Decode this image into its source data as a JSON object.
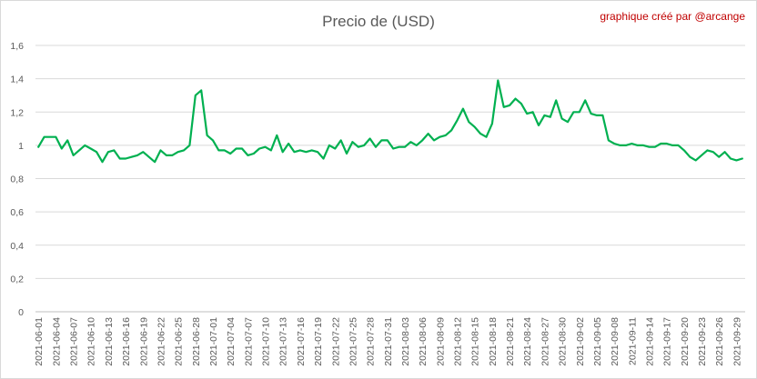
{
  "credit": "graphique créé par @arcange",
  "chart_data": {
    "type": "line",
    "title": "Precio de (USD)",
    "xlabel": "",
    "ylabel": "",
    "ylim": [
      0,
      1.6
    ],
    "yticks": [
      "0",
      "0,2",
      "0,4",
      "0,6",
      "0,8",
      "1",
      "1,2",
      "1,4",
      "1,6"
    ],
    "grid": true,
    "legend": "none",
    "line_color": "#00b050",
    "x": [
      "2021-06-01",
      "2021-06-02",
      "2021-06-03",
      "2021-06-04",
      "2021-06-05",
      "2021-06-06",
      "2021-06-07",
      "2021-06-08",
      "2021-06-09",
      "2021-06-10",
      "2021-06-11",
      "2021-06-12",
      "2021-06-13",
      "2021-06-14",
      "2021-06-15",
      "2021-06-16",
      "2021-06-17",
      "2021-06-18",
      "2021-06-19",
      "2021-06-20",
      "2021-06-21",
      "2021-06-22",
      "2021-06-23",
      "2021-06-24",
      "2021-06-25",
      "2021-06-26",
      "2021-06-27",
      "2021-06-28",
      "2021-06-29",
      "2021-06-30",
      "2021-07-01",
      "2021-07-02",
      "2021-07-03",
      "2021-07-04",
      "2021-07-05",
      "2021-07-06",
      "2021-07-07",
      "2021-07-08",
      "2021-07-09",
      "2021-07-10",
      "2021-07-11",
      "2021-07-12",
      "2021-07-13",
      "2021-07-14",
      "2021-07-15",
      "2021-07-16",
      "2021-07-17",
      "2021-07-18",
      "2021-07-19",
      "2021-07-20",
      "2021-07-21",
      "2021-07-22",
      "2021-07-23",
      "2021-07-24",
      "2021-07-25",
      "2021-07-26",
      "2021-07-27",
      "2021-07-28",
      "2021-07-29",
      "2021-07-30",
      "2021-07-31",
      "2021-08-01",
      "2021-08-02",
      "2021-08-03",
      "2021-08-04",
      "2021-08-05",
      "2021-08-06",
      "2021-08-07",
      "2021-08-08",
      "2021-08-09",
      "2021-08-10",
      "2021-08-11",
      "2021-08-12",
      "2021-08-13",
      "2021-08-14",
      "2021-08-15",
      "2021-08-16",
      "2021-08-17",
      "2021-08-18",
      "2021-08-19",
      "2021-08-20",
      "2021-08-21",
      "2021-08-22",
      "2021-08-23",
      "2021-08-24",
      "2021-08-25",
      "2021-08-26",
      "2021-08-27",
      "2021-08-28",
      "2021-08-29",
      "2021-08-30",
      "2021-08-31",
      "2021-09-01",
      "2021-09-02",
      "2021-09-03",
      "2021-09-04",
      "2021-09-05",
      "2021-09-06",
      "2021-09-07",
      "2021-09-08",
      "2021-09-09",
      "2021-09-10",
      "2021-09-11",
      "2021-09-12",
      "2021-09-13",
      "2021-09-14",
      "2021-09-15",
      "2021-09-16",
      "2021-09-17",
      "2021-09-18",
      "2021-09-19",
      "2021-09-20",
      "2021-09-21",
      "2021-09-22",
      "2021-09-23",
      "2021-09-24",
      "2021-09-25",
      "2021-09-26",
      "2021-09-27",
      "2021-09-28",
      "2021-09-29",
      "2021-09-30"
    ],
    "xtick_labels": [
      "2021-06-01",
      "2021-06-04",
      "2021-06-07",
      "2021-06-10",
      "2021-06-13",
      "2021-06-16",
      "2021-06-19",
      "2021-06-22",
      "2021-06-25",
      "2021-06-28",
      "2021-07-01",
      "2021-07-04",
      "2021-07-07",
      "2021-07-10",
      "2021-07-13",
      "2021-07-16",
      "2021-07-19",
      "2021-07-22",
      "2021-07-25",
      "2021-07-28",
      "2021-07-31",
      "2021-08-03",
      "2021-08-06",
      "2021-08-09",
      "2021-08-12",
      "2021-08-15",
      "2021-08-18",
      "2021-08-21",
      "2021-08-24",
      "2021-08-27",
      "2021-08-30",
      "2021-09-02",
      "2021-09-05",
      "2021-09-08",
      "2021-09-11",
      "2021-09-14",
      "2021-09-17",
      "2021-09-20",
      "2021-09-23",
      "2021-09-26",
      "2021-09-29"
    ],
    "values": [
      0.99,
      1.05,
      1.05,
      1.05,
      0.98,
      1.03,
      0.94,
      0.97,
      1.0,
      0.98,
      0.96,
      0.9,
      0.96,
      0.97,
      0.92,
      0.92,
      0.93,
      0.94,
      0.96,
      0.93,
      0.9,
      0.97,
      0.94,
      0.94,
      0.96,
      0.97,
      1.0,
      1.3,
      1.33,
      1.06,
      1.03,
      0.97,
      0.97,
      0.95,
      0.98,
      0.98,
      0.94,
      0.95,
      0.98,
      0.99,
      0.97,
      1.06,
      0.96,
      1.01,
      0.96,
      0.97,
      0.96,
      0.97,
      0.96,
      0.92,
      1.0,
      0.98,
      1.03,
      0.95,
      1.02,
      0.99,
      1.0,
      1.04,
      0.99,
      1.03,
      1.03,
      0.98,
      0.99,
      0.99,
      1.02,
      1.0,
      1.03,
      1.07,
      1.03,
      1.05,
      1.06,
      1.09,
      1.15,
      1.22,
      1.14,
      1.11,
      1.07,
      1.05,
      1.13,
      1.39,
      1.23,
      1.24,
      1.28,
      1.25,
      1.19,
      1.2,
      1.12,
      1.18,
      1.17,
      1.27,
      1.16,
      1.14,
      1.2,
      1.2,
      1.27,
      1.19,
      1.18,
      1.18,
      1.03,
      1.01,
      1.0,
      1.0,
      1.01,
      1.0,
      1.0,
      0.99,
      0.99,
      1.01,
      1.01,
      1.0,
      1.0,
      0.97,
      0.93,
      0.91,
      0.94,
      0.97,
      0.96,
      0.93,
      0.96,
      0.92,
      0.91,
      0.92
    ]
  }
}
